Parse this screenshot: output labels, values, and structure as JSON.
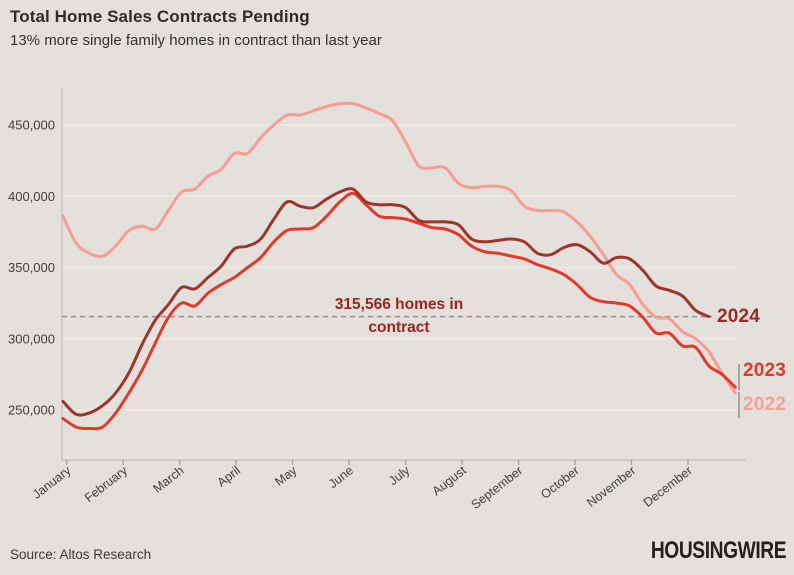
{
  "header": {
    "title": "Total Home Sales Contracts Pending",
    "subtitle": "13% more single family homes in contract than last year"
  },
  "footer": {
    "source": "Source: Altos Research",
    "logo": "HOUSINGWIRE"
  },
  "colors": {
    "background": "#E4E1DC",
    "gridline": "#EFECE8",
    "axis": "#C9C6C1",
    "tick": "#A7A4A0",
    "dashed_line": "#96938E",
    "axis_text": "#413F3C",
    "annotation_text": "#A1221C",
    "series_2022": "#F99C93",
    "series_2023": "#E2392B",
    "series_2024": "#9E352C"
  },
  "chart_data": {
    "type": "line",
    "title": "Total Home Sales Contracts Pending",
    "subtitle": "13% more single family homes in contract than last year",
    "x_unit": "week (Jan–Dec)",
    "ylabel": "Homes in contract",
    "ylim": [
      214000,
      476000
    ],
    "grid": "horizontal",
    "legend_position": "line-end-labels-right",
    "x_axis": {
      "tick_labels": [
        "January",
        "February",
        "March",
        "April",
        "May",
        "June",
        "July",
        "August",
        "September",
        "October",
        "November",
        "December"
      ]
    },
    "y_axis": {
      "ticks": [
        250000,
        300000,
        350000,
        400000,
        450000
      ],
      "tick_labels": [
        "250,000",
        "300,000",
        "350,000",
        "400,000",
        "450,000"
      ]
    },
    "annotation": {
      "value": 315566,
      "lines": [
        "315,566 homes in",
        "contract"
      ]
    },
    "series": [
      {
        "name": "2022",
        "color": "#F99C93",
        "values": [
          386000,
          367000,
          360000,
          358000,
          365000,
          376000,
          379000,
          377000,
          390000,
          403000,
          405000,
          414000,
          419000,
          430000,
          430000,
          441000,
          450000,
          457000,
          457000,
          460000,
          463000,
          465000,
          465000,
          462000,
          458000,
          453000,
          438000,
          421000,
          420000,
          420000,
          409000,
          406000,
          407000,
          407000,
          404000,
          393000,
          390000,
          390000,
          389000,
          382000,
          372000,
          359000,
          345000,
          338000,
          324000,
          315000,
          314000,
          305000,
          300000,
          291000,
          276000,
          262000
        ]
      },
      {
        "name": "2023",
        "color": "#E2392B",
        "values": [
          244000,
          238000,
          237000,
          238000,
          248000,
          262000,
          278000,
          297000,
          315000,
          325000,
          323000,
          332000,
          338000,
          343000,
          350000,
          357000,
          368000,
          376000,
          377000,
          378000,
          386000,
          396000,
          402000,
          394000,
          386000,
          385000,
          384000,
          381000,
          378000,
          377000,
          373000,
          365000,
          361000,
          360000,
          358000,
          356000,
          352000,
          349000,
          345000,
          338000,
          329000,
          326000,
          325000,
          323000,
          315000,
          304000,
          304000,
          295000,
          294000,
          281000,
          275000,
          266000
        ]
      },
      {
        "name": "2024",
        "color": "#9E352C",
        "values": [
          256000,
          247000,
          248000,
          253000,
          262000,
          276000,
          296000,
          313000,
          324000,
          336000,
          335000,
          343000,
          351000,
          363000,
          365000,
          370000,
          384000,
          396000,
          393000,
          392000,
          398000,
          403000,
          405000,
          396000,
          394000,
          394000,
          392000,
          383000,
          382000,
          382000,
          380000,
          370000,
          368000,
          369000,
          370000,
          368000,
          360000,
          359000,
          364000,
          366000,
          361000,
          353000,
          357000,
          356000,
          348000,
          337000,
          334000,
          330000,
          320000,
          315566
        ]
      }
    ]
  }
}
